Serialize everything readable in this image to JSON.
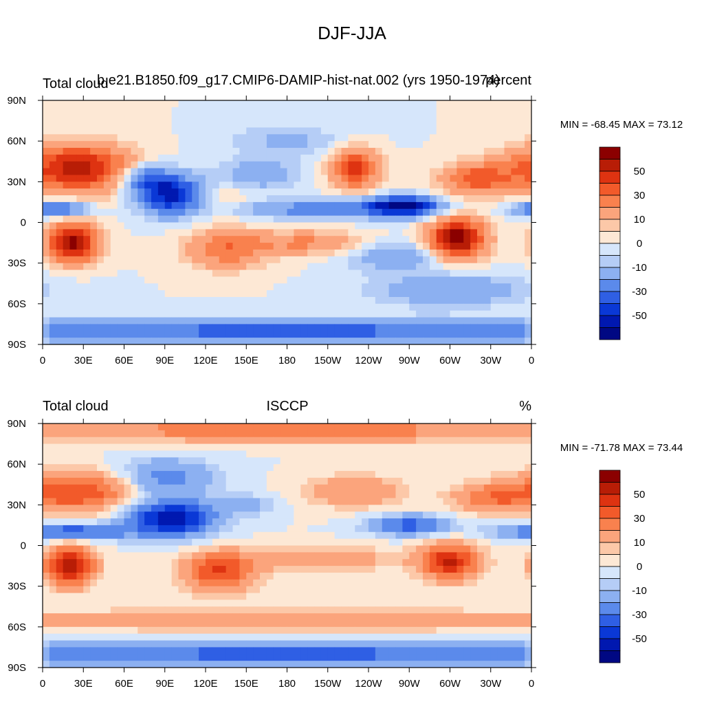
{
  "title": "DJF-JJA",
  "chart_data": [
    {
      "type": "heatmap",
      "left_title": "Total cloud",
      "center_title": "b.e21.B1850.f09_g17.CMIP6-DAMIP-hist-nat.002 (yrs 1950-1974)",
      "right_title": "percent",
      "min_max_text": "MIN = -68.45 MAX =  73.12",
      "x_ticks": [
        "0",
        "30E",
        "60E",
        "90E",
        "120E",
        "150E",
        "180",
        "150W",
        "120W",
        "90W",
        "60W",
        "30W",
        "0"
      ],
      "y_ticks": [
        "90N",
        "60N",
        "30N",
        "0",
        "30S",
        "60S",
        "90S"
      ],
      "colorbar_labels": [
        "50",
        "30",
        "10",
        "0",
        "-10",
        "-30",
        "-50"
      ],
      "field_range": [
        -68.45,
        73.12
      ]
    },
    {
      "type": "heatmap",
      "left_title": "Total cloud",
      "center_title": "ISCCP",
      "right_title": "%",
      "min_max_text": "MIN = -71.78 MAX =  73.44",
      "x_ticks": [
        "0",
        "30E",
        "60E",
        "90E",
        "120E",
        "150E",
        "180",
        "150W",
        "120W",
        "90W",
        "60W",
        "30W",
        "0"
      ],
      "y_ticks": [
        "90N",
        "60N",
        "30N",
        "0",
        "30S",
        "60S",
        "90S"
      ],
      "colorbar_labels": [
        "50",
        "30",
        "10",
        "0",
        "-10",
        "-30",
        "-50"
      ],
      "field_range": [
        -71.78,
        73.44
      ]
    }
  ],
  "colorbar_colors": [
    "#8b0000",
    "#b81d06",
    "#de3311",
    "#f25a2a",
    "#f9814e",
    "#fba47c",
    "#fcc8a8",
    "#fde8d5",
    "#d6e6fb",
    "#b5cdf6",
    "#8cb0f1",
    "#5b8aeb",
    "#2f5fe4",
    "#0a38d6",
    "#0018b0",
    "#000883"
  ]
}
